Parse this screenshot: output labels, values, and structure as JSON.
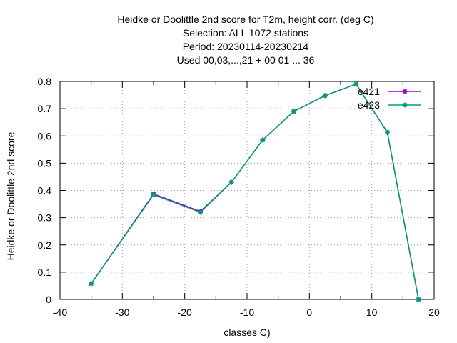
{
  "chart_data": {
    "type": "line",
    "title_lines": [
      "Heidke or Doolittle 2nd score  for T2m, height corr. (deg C)",
      "Selection: ALL   1072 stations",
      "Period: 20230114-20230214",
      "Used  00,03,...,21  + 00 01 ... 36"
    ],
    "xlabel": "classes C)",
    "ylabel": "Heidke or Doolittle 2nd score",
    "xlim": [
      -40,
      20
    ],
    "ylim": [
      0,
      0.8
    ],
    "xticks": [
      -40,
      -30,
      -20,
      -10,
      0,
      10,
      20
    ],
    "yticks": [
      0,
      0.1,
      0.2,
      0.3,
      0.4,
      0.5,
      0.6,
      0.7,
      0.8
    ],
    "xtick_labels": [
      "-40",
      "-30",
      "-20",
      "-10",
      "0",
      "10",
      "20"
    ],
    "ytick_labels": [
      "0",
      "0.1",
      "0.2",
      "0.3",
      "0.4",
      "0.5",
      "0.6",
      "0.7",
      "0.8"
    ],
    "grid": true,
    "legend_position": "top-right",
    "x": [
      -35,
      -25,
      -17.5,
      -12.5,
      -7.5,
      -2.5,
      2.5,
      7.5,
      12.5,
      17.5
    ],
    "series": [
      {
        "name": "e421",
        "color": "#9400d3",
        "values": [
          0.058,
          0.387,
          0.323,
          0.43,
          0.585,
          0.69,
          0.748,
          0.79,
          0.613,
          0.0
        ]
      },
      {
        "name": "e423",
        "color": "#009e73",
        "values": [
          0.058,
          0.384,
          0.32,
          0.43,
          0.585,
          0.69,
          0.748,
          0.79,
          0.613,
          0.0
        ]
      }
    ]
  }
}
